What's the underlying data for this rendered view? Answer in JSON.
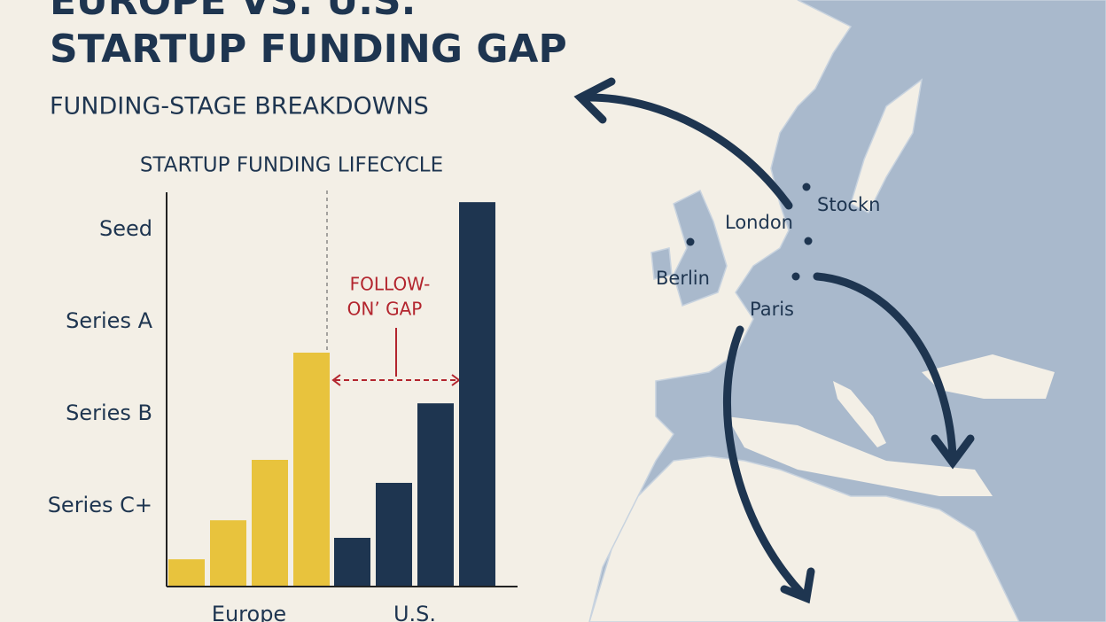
{
  "chart_data": {
    "type": "bar",
    "title": [
      "EUROPE VS. U.S.",
      "STARTUP FUNDING GAP"
    ],
    "subtitle": "FUNDING-STAGE BREAKDOWNS",
    "chart_title": "STARTUP FUNDING LIFECYCLE",
    "categories": [
      null,
      null,
      null,
      null
    ],
    "series": [
      {
        "name": "Europe",
        "color": "#e8c33d",
        "values": [
          7,
          17,
          32.5,
          60
        ]
      },
      {
        "name": "U.S.",
        "color": "#1e3550",
        "values": [
          12.5,
          26.6,
          47,
          98.6
        ]
      }
    ],
    "ylim": [
      0,
      100
    ],
    "yticks": [
      {
        "value": 91.6,
        "label": "Seed"
      },
      {
        "value": 68,
        "label": "Series A"
      },
      {
        "value": 44.3,
        "label": "Series B"
      },
      {
        "value": 20.7,
        "label": "Series C+"
      }
    ],
    "grid": false,
    "annotation": [
      "FOLLOW-",
      "ON’ GAP"
    ]
  },
  "map": {
    "labels": [
      "Stockn",
      "London",
      "Berlin",
      "Paris"
    ]
  }
}
